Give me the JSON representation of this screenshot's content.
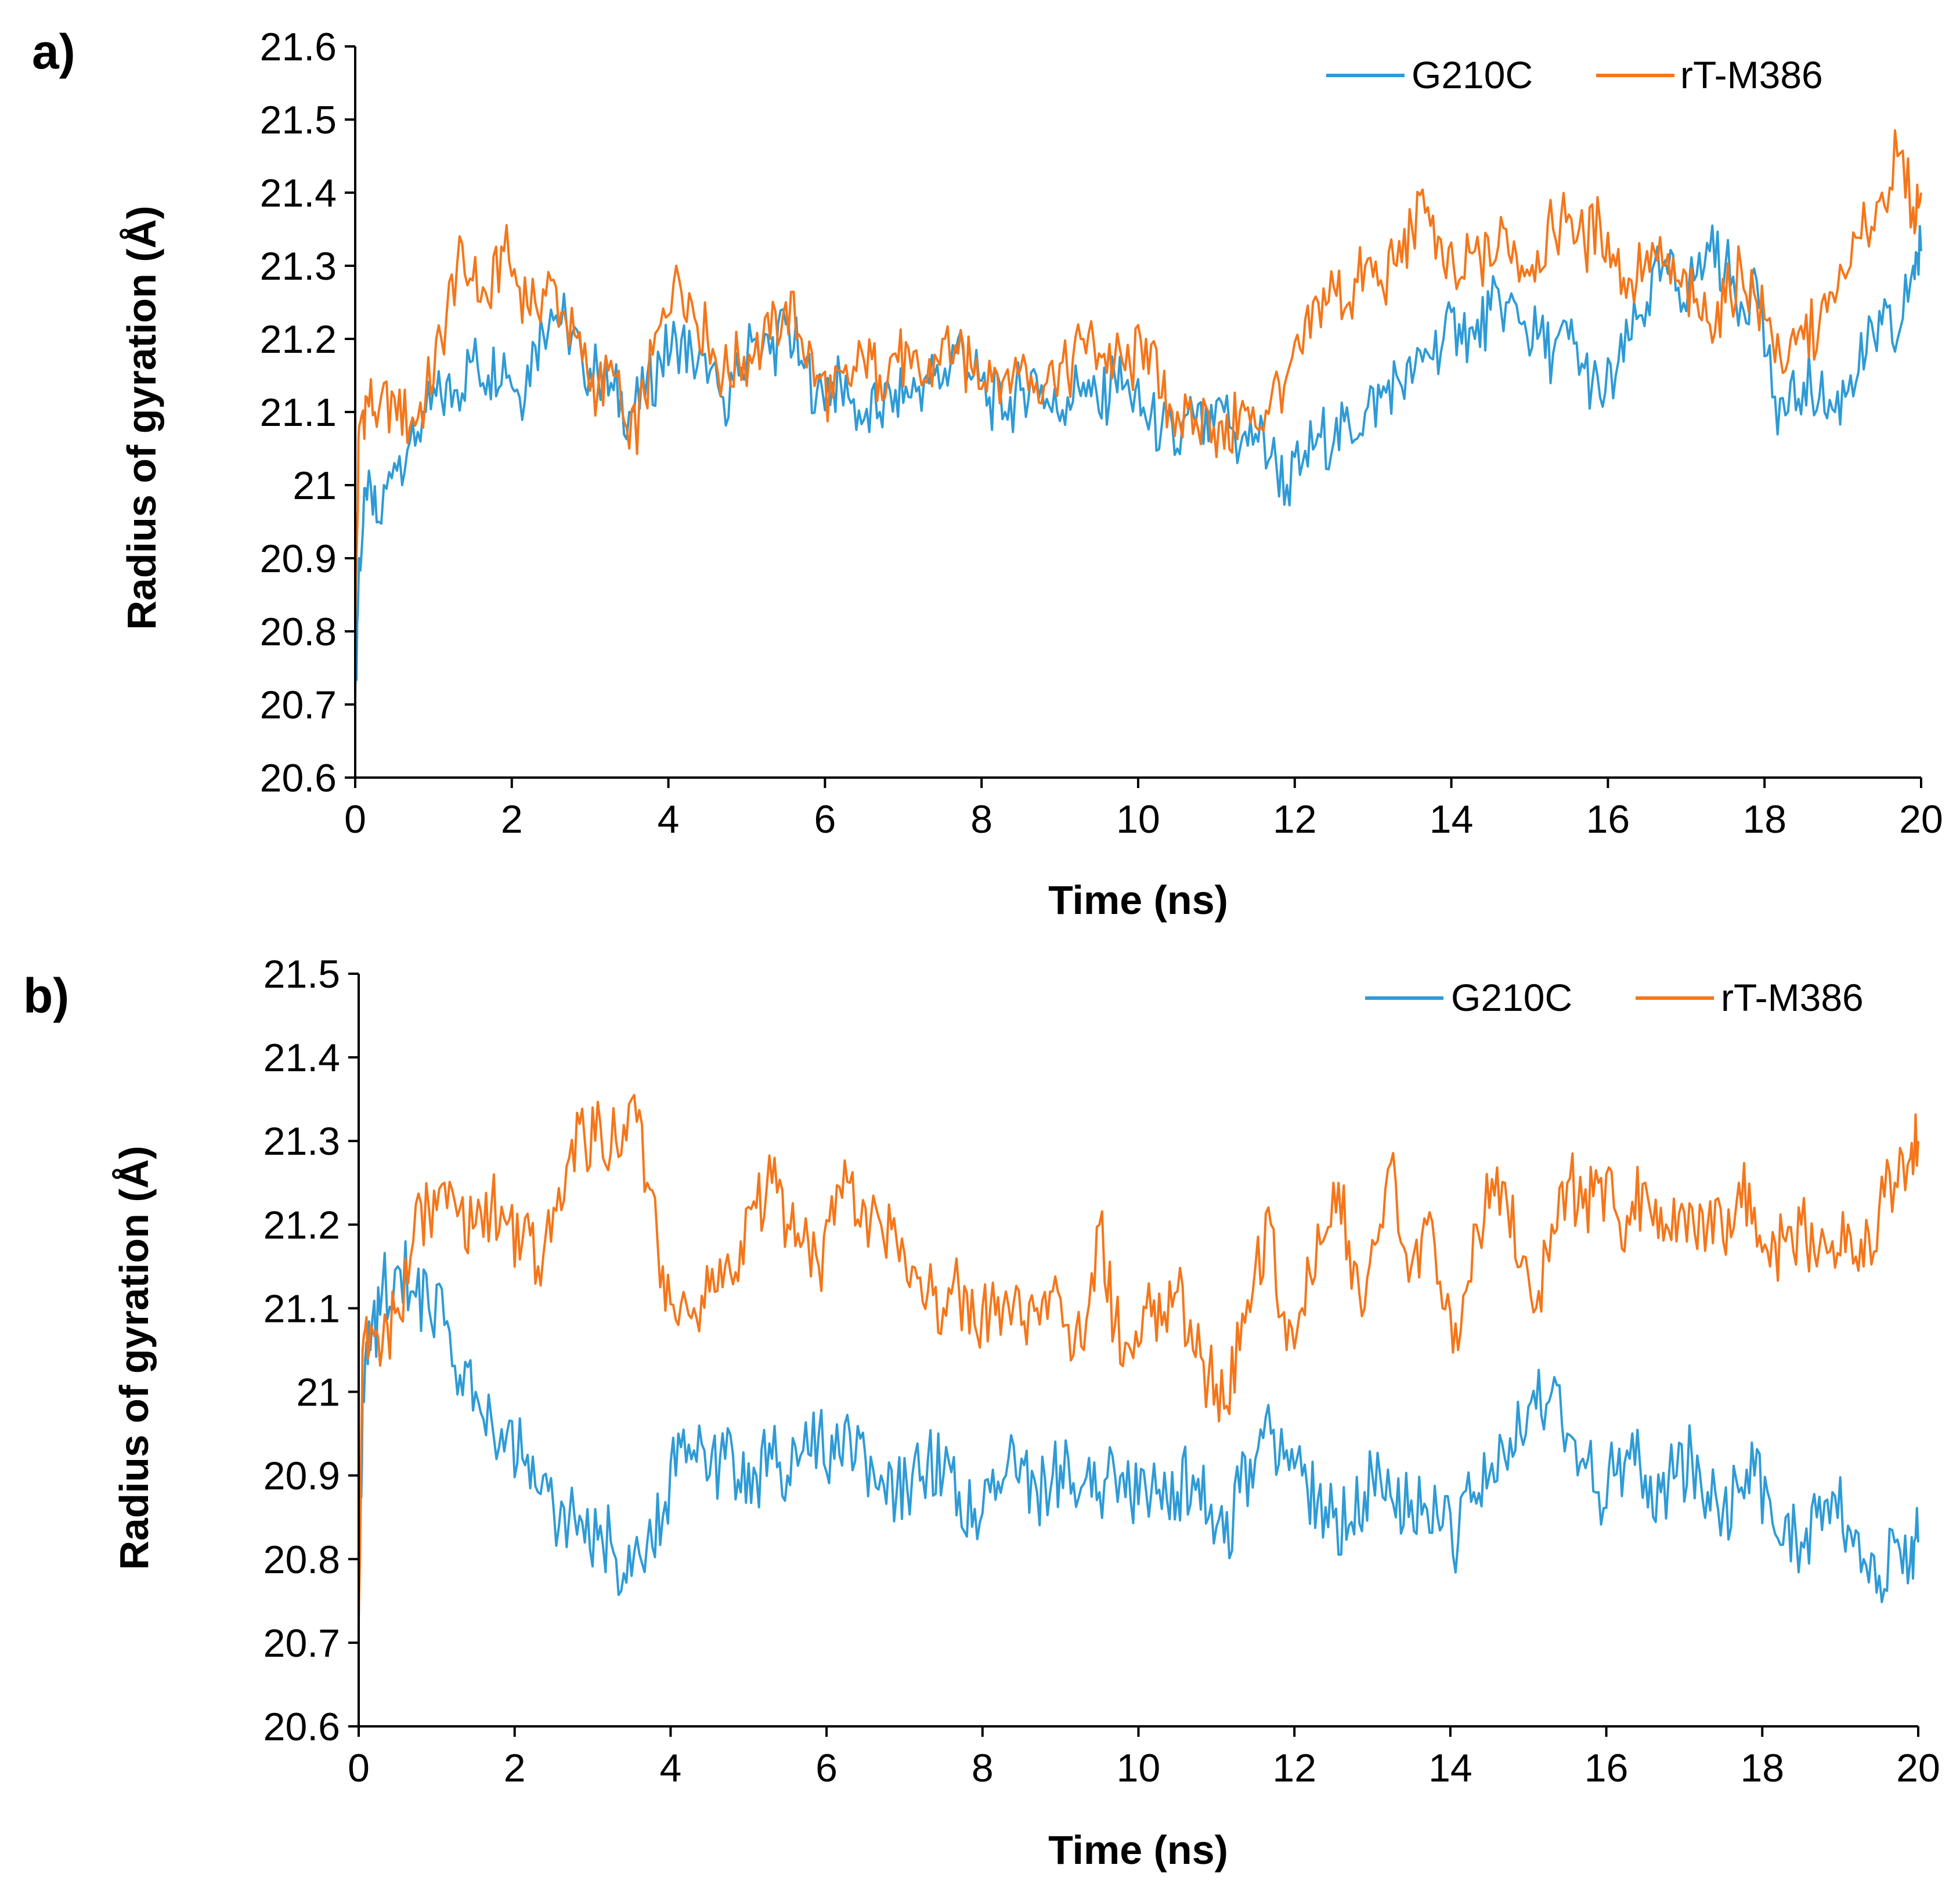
{
  "colors": {
    "series1": "#2e9bd6",
    "series2": "#f5761a",
    "axis": "#000000",
    "background": "#ffffff"
  },
  "chart_data": [
    {
      "type": "line",
      "panel_label": "a)",
      "title": "",
      "xlabel": "Time (ns)",
      "ylabel": "Radius of gyration (Å)",
      "xlim": [
        0,
        20
      ],
      "ylim": [
        20.6,
        21.6
      ],
      "grid": false,
      "legend_position": "top-right",
      "xticks": [
        0,
        2,
        4,
        6,
        8,
        10,
        12,
        14,
        16,
        18,
        20
      ],
      "xtick_labels": [
        "0",
        "2",
        "4",
        "6",
        "8",
        "10",
        "12",
        "14",
        "16",
        "18",
        "20"
      ],
      "yticks": [
        20.6,
        20.7,
        20.8,
        20.9,
        21.0,
        21.1,
        21.2,
        21.3,
        21.4,
        21.5,
        21.6
      ],
      "ytick_labels": [
        "20.6",
        "20.7",
        "20.8",
        "20.9",
        "21",
        "21.1",
        "21.2",
        "21.3",
        "21.4",
        "21.5",
        "21.6"
      ],
      "series": [
        {
          "name": "G210C",
          "color": "#2e9bd6",
          "x": [
            0,
            0.05,
            0.15,
            0.3,
            0.5,
            0.7,
            0.9,
            1.1,
            1.3,
            1.5,
            1.7,
            1.9,
            2.1,
            2.3,
            2.5,
            2.7,
            2.9,
            3.1,
            3.3,
            3.5,
            3.7,
            3.9,
            4.1,
            4.3,
            4.5,
            4.7,
            4.9,
            5.1,
            5.3,
            5.5,
            5.7,
            5.9,
            6.1,
            6.3,
            6.5,
            6.7,
            6.9,
            7.1,
            7.3,
            7.5,
            7.7,
            7.9,
            8.1,
            8.3,
            8.5,
            8.7,
            8.9,
            9.1,
            9.3,
            9.5,
            9.7,
            9.9,
            10.1,
            10.3,
            10.5,
            10.7,
            10.9,
            11.1,
            11.3,
            11.5,
            11.7,
            11.9,
            12.1,
            12.3,
            12.5,
            12.7,
            12.9,
            13.1,
            13.3,
            13.5,
            13.7,
            13.9,
            14.1,
            14.3,
            14.5,
            14.7,
            14.9,
            15.1,
            15.3,
            15.5,
            15.7,
            15.9,
            16.1,
            16.3,
            16.5,
            16.7,
            16.9,
            17.1,
            17.3,
            17.5,
            17.7,
            17.9,
            18.1,
            18.3,
            18.5,
            18.7,
            18.9,
            19.1,
            19.3,
            19.5,
            19.7,
            19.9,
            20
          ],
          "values": [
            20.71,
            20.9,
            20.98,
            20.95,
            21.03,
            21.06,
            21.1,
            21.12,
            21.13,
            21.17,
            21.15,
            21.18,
            21.12,
            21.19,
            21.24,
            21.22,
            21.17,
            21.15,
            21.13,
            21.1,
            21.12,
            21.17,
            21.2,
            21.18,
            21.14,
            21.12,
            21.15,
            21.2,
            21.18,
            21.22,
            21.17,
            21.13,
            21.14,
            21.12,
            21.09,
            21.1,
            21.13,
            21.12,
            21.15,
            21.14,
            21.2,
            21.15,
            21.12,
            21.1,
            21.13,
            21.15,
            21.1,
            21.12,
            21.14,
            21.1,
            21.15,
            21.12,
            21.09,
            21.08,
            21.05,
            21.1,
            21.06,
            21.1,
            21.05,
            21.07,
            21.04,
            21.0,
            21.03,
            21.07,
            21.06,
            21.08,
            21.1,
            21.12,
            21.15,
            21.14,
            21.18,
            21.2,
            21.22,
            21.2,
            21.24,
            21.25,
            21.22,
            21.2,
            21.18,
            21.2,
            21.16,
            21.12,
            21.15,
            21.2,
            21.25,
            21.3,
            21.27,
            21.28,
            21.32,
            21.3,
            21.25,
            21.28,
            21.12,
            21.1,
            21.14,
            21.12,
            21.1,
            21.15,
            21.18,
            21.22,
            21.2,
            21.3,
            21.32
          ]
        },
        {
          "name": "rT-M386",
          "color": "#f5761a",
          "x": [
            0,
            0.05,
            0.15,
            0.3,
            0.5,
            0.7,
            0.9,
            1.1,
            1.3,
            1.5,
            1.7,
            1.9,
            2.1,
            2.3,
            2.5,
            2.7,
            2.9,
            3.1,
            3.3,
            3.5,
            3.7,
            3.9,
            4.1,
            4.3,
            4.5,
            4.7,
            4.9,
            5.1,
            5.3,
            5.5,
            5.7,
            5.9,
            6.1,
            6.3,
            6.5,
            6.7,
            6.9,
            7.1,
            7.3,
            7.5,
            7.7,
            7.9,
            8.1,
            8.3,
            8.5,
            8.7,
            8.9,
            9.1,
            9.3,
            9.5,
            9.7,
            9.9,
            10.1,
            10.3,
            10.5,
            10.7,
            10.9,
            11.1,
            11.3,
            11.5,
            11.7,
            11.9,
            12.1,
            12.3,
            12.5,
            12.7,
            12.9,
            13.1,
            13.3,
            13.5,
            13.7,
            13.9,
            14.1,
            14.3,
            14.5,
            14.7,
            14.9,
            15.1,
            15.3,
            15.5,
            15.7,
            15.9,
            16.1,
            16.3,
            16.5,
            16.7,
            16.9,
            17.1,
            17.3,
            17.5,
            17.7,
            17.9,
            18.1,
            18.3,
            18.5,
            18.7,
            18.9,
            19.1,
            19.3,
            19.5,
            19.7,
            19.9,
            20
          ],
          "values": [
            20.8,
            21.08,
            21.12,
            21.1,
            21.12,
            21.08,
            21.12,
            21.2,
            21.3,
            21.28,
            21.25,
            21.32,
            21.27,
            21.25,
            21.28,
            21.22,
            21.17,
            21.13,
            21.15,
            21.05,
            21.12,
            21.22,
            21.3,
            21.25,
            21.2,
            21.15,
            21.17,
            21.18,
            21.2,
            21.25,
            21.2,
            21.15,
            21.12,
            21.14,
            21.17,
            21.15,
            21.18,
            21.16,
            21.14,
            21.2,
            21.18,
            21.15,
            21.17,
            21.15,
            21.16,
            21.14,
            21.17,
            21.15,
            21.2,
            21.18,
            21.17,
            21.16,
            21.2,
            21.12,
            21.1,
            21.07,
            21.1,
            21.05,
            21.1,
            21.08,
            21.12,
            21.15,
            21.18,
            21.25,
            21.27,
            21.25,
            21.3,
            21.28,
            21.3,
            21.35,
            21.38,
            21.3,
            21.28,
            21.32,
            21.3,
            21.35,
            21.3,
            21.32,
            21.35,
            21.37,
            21.33,
            21.36,
            21.3,
            21.28,
            21.32,
            21.3,
            21.28,
            21.25,
            21.22,
            21.25,
            21.3,
            21.25,
            21.2,
            21.17,
            21.2,
            21.22,
            21.25,
            21.3,
            21.35,
            21.4,
            21.45,
            21.38,
            21.4
          ]
        }
      ]
    },
    {
      "type": "line",
      "panel_label": "b)",
      "title": "",
      "xlabel": "Time (ns)",
      "ylabel": "Radius of gyration (Å)",
      "xlim": [
        0,
        20
      ],
      "ylim": [
        20.6,
        21.5
      ],
      "grid": false,
      "legend_position": "top-right",
      "xticks": [
        0,
        2,
        4,
        6,
        8,
        10,
        12,
        14,
        16,
        18,
        20
      ],
      "xtick_labels": [
        "0",
        "2",
        "4",
        "6",
        "8",
        "10",
        "12",
        "14",
        "16",
        "18",
        "20"
      ],
      "yticks": [
        20.6,
        20.7,
        20.8,
        20.9,
        21.0,
        21.1,
        21.2,
        21.3,
        21.4,
        21.5
      ],
      "ytick_labels": [
        "20.6",
        "20.7",
        "20.8",
        "20.9",
        "21",
        "21.1",
        "21.2",
        "21.3",
        "21.4",
        "21.5"
      ],
      "series": [
        {
          "name": "G210C",
          "color": "#2e9bd6",
          "x": [
            0,
            0.05,
            0.15,
            0.3,
            0.5,
            0.7,
            0.9,
            1.1,
            1.3,
            1.5,
            1.7,
            1.9,
            2.1,
            2.3,
            2.5,
            2.7,
            2.9,
            3.1,
            3.3,
            3.5,
            3.7,
            3.9,
            4.1,
            4.3,
            4.5,
            4.7,
            4.9,
            5.1,
            5.3,
            5.5,
            5.7,
            5.9,
            6.1,
            6.3,
            6.5,
            6.7,
            6.9,
            7.1,
            7.3,
            7.5,
            7.7,
            7.9,
            8.1,
            8.3,
            8.5,
            8.7,
            8.9,
            9.1,
            9.3,
            9.5,
            9.7,
            9.9,
            10.1,
            10.3,
            10.5,
            10.7,
            10.9,
            11.1,
            11.3,
            11.5,
            11.7,
            11.9,
            12.1,
            12.3,
            12.5,
            12.7,
            12.9,
            13.1,
            13.3,
            13.5,
            13.7,
            13.9,
            14.1,
            14.3,
            14.5,
            14.7,
            14.9,
            15.1,
            15.3,
            15.5,
            15.7,
            15.9,
            16.1,
            16.3,
            16.5,
            16.7,
            16.9,
            17.1,
            17.3,
            17.5,
            17.7,
            17.9,
            18.1,
            18.3,
            18.5,
            18.7,
            18.9,
            19.1,
            19.3,
            19.5,
            19.7,
            19.9,
            20
          ],
          "values": [
            20.72,
            21.0,
            21.05,
            21.12,
            21.15,
            21.12,
            21.1,
            21.08,
            21.02,
            21.0,
            20.97,
            20.95,
            20.92,
            20.88,
            20.86,
            20.85,
            20.82,
            20.84,
            20.8,
            20.78,
            20.82,
            20.85,
            20.95,
            20.93,
            20.9,
            20.92,
            20.88,
            20.9,
            20.92,
            20.9,
            20.93,
            20.95,
            20.92,
            20.95,
            20.92,
            20.9,
            20.88,
            20.9,
            20.92,
            20.9,
            20.88,
            20.86,
            20.88,
            20.9,
            20.92,
            20.88,
            20.9,
            20.92,
            20.89,
            20.88,
            20.9,
            20.87,
            20.88,
            20.86,
            20.88,
            20.9,
            20.85,
            20.82,
            20.88,
            20.92,
            20.95,
            20.93,
            20.9,
            20.87,
            20.85,
            20.84,
            20.88,
            20.9,
            20.85,
            20.87,
            20.86,
            20.84,
            20.82,
            20.88,
            20.9,
            20.92,
            20.95,
            20.98,
            21.0,
            20.95,
            20.92,
            20.88,
            20.9,
            20.92,
            20.9,
            20.88,
            20.9,
            20.92,
            20.88,
            20.86,
            20.88,
            20.9,
            20.87,
            20.85,
            20.82,
            20.85,
            20.88,
            20.84,
            20.8,
            20.78,
            20.82,
            20.8,
            20.82
          ]
        },
        {
          "name": "rT-M386",
          "color": "#f5761a",
          "x": [
            0,
            0.05,
            0.15,
            0.3,
            0.5,
            0.7,
            0.9,
            1.1,
            1.3,
            1.5,
            1.7,
            1.9,
            2.1,
            2.3,
            2.5,
            2.7,
            2.9,
            3.1,
            3.3,
            3.5,
            3.7,
            3.9,
            4.1,
            4.3,
            4.5,
            4.7,
            4.9,
            5.1,
            5.3,
            5.5,
            5.7,
            5.9,
            6.1,
            6.3,
            6.5,
            6.7,
            6.9,
            7.1,
            7.3,
            7.5,
            7.7,
            7.9,
            8.1,
            8.3,
            8.5,
            8.7,
            8.9,
            9.1,
            9.3,
            9.5,
            9.7,
            9.9,
            10.1,
            10.3,
            10.5,
            10.7,
            10.9,
            11.1,
            11.3,
            11.5,
            11.7,
            11.9,
            12.1,
            12.3,
            12.5,
            12.7,
            12.9,
            13.1,
            13.3,
            13.5,
            13.7,
            13.9,
            14.1,
            14.3,
            14.5,
            14.7,
            14.9,
            15.1,
            15.3,
            15.5,
            15.7,
            15.9,
            16.1,
            16.3,
            16.5,
            16.7,
            16.9,
            17.1,
            17.3,
            17.5,
            17.7,
            17.9,
            18.1,
            18.3,
            18.5,
            18.7,
            18.9,
            19.1,
            19.3,
            19.5,
            19.7,
            19.9,
            20
          ],
          "values": [
            20.73,
            21.05,
            21.08,
            21.05,
            21.1,
            21.18,
            21.22,
            21.25,
            21.22,
            21.2,
            21.22,
            21.2,
            21.18,
            21.15,
            21.22,
            21.28,
            21.3,
            21.32,
            21.3,
            21.35,
            21.25,
            21.15,
            21.08,
            21.1,
            21.12,
            21.15,
            21.18,
            21.22,
            21.25,
            21.2,
            21.18,
            21.15,
            21.2,
            21.25,
            21.22,
            21.2,
            21.18,
            21.15,
            21.12,
            21.1,
            21.12,
            21.08,
            21.1,
            21.12,
            21.08,
            21.1,
            21.12,
            21.08,
            21.05,
            21.2,
            21.08,
            21.05,
            21.1,
            21.08,
            21.12,
            21.05,
            21.02,
            20.98,
            21.05,
            21.15,
            21.2,
            21.05,
            21.1,
            21.2,
            21.25,
            21.18,
            21.1,
            21.2,
            21.25,
            21.15,
            21.2,
            21.1,
            21.05,
            21.2,
            21.22,
            21.25,
            21.15,
            21.1,
            21.2,
            21.25,
            21.22,
            21.25,
            21.22,
            21.2,
            21.25,
            21.22,
            21.18,
            21.22,
            21.2,
            21.18,
            21.25,
            21.22,
            21.15,
            21.18,
            21.2,
            21.15,
            21.18,
            21.2,
            21.15,
            21.22,
            21.25,
            21.28,
            21.3
          ]
        }
      ]
    }
  ]
}
